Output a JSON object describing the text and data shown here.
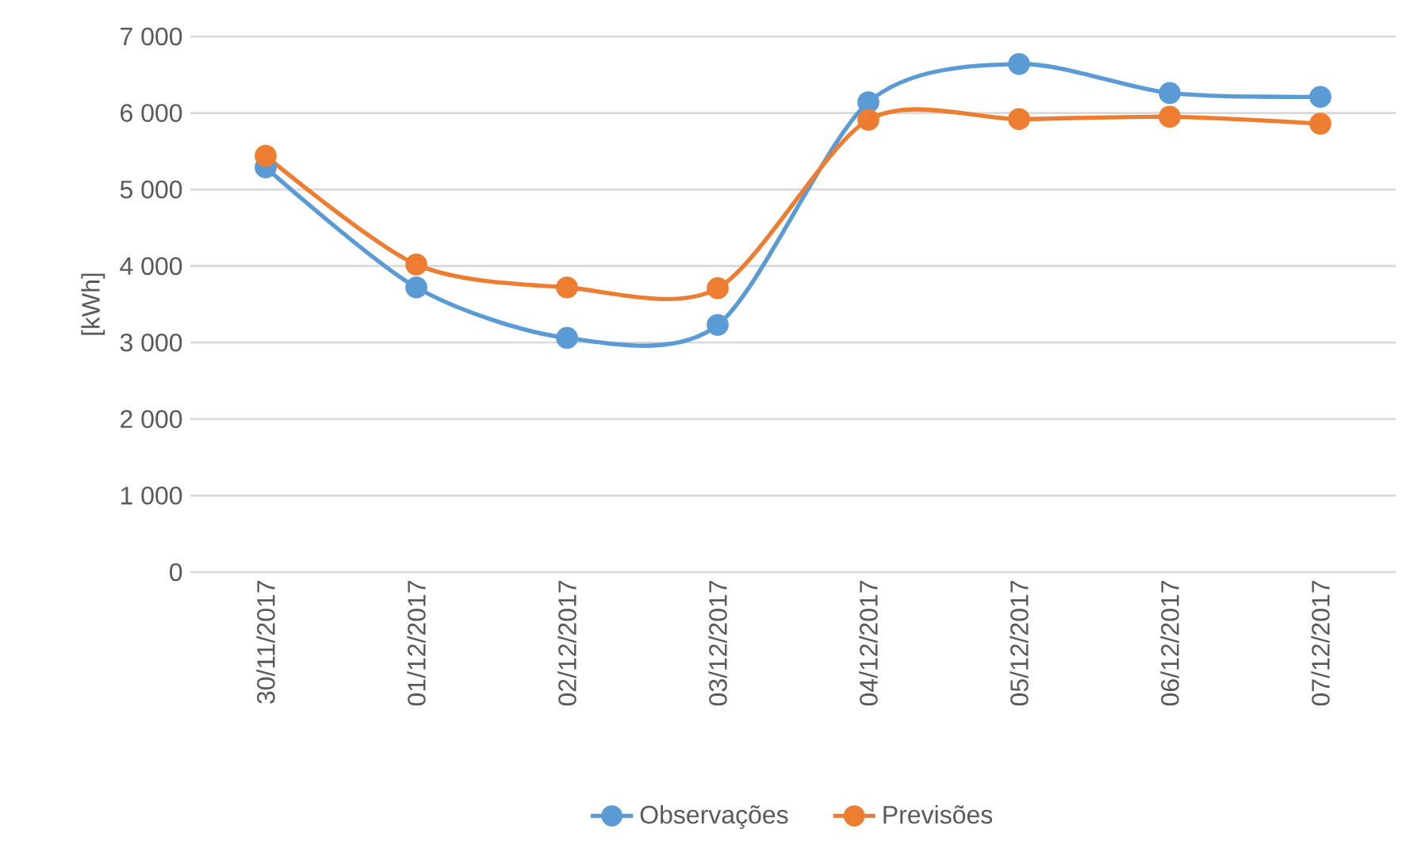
{
  "chart_data": {
    "type": "line",
    "ylabel": "[kWh]",
    "categories": [
      "30/11/2017",
      "01/12/2017",
      "02/12/2017",
      "03/12/2017",
      "04/12/2017",
      "05/12/2017",
      "06/12/2017",
      "07/12/2017"
    ],
    "series": [
      {
        "name": "Observações",
        "color": "#5b9bd5",
        "values": [
          5290,
          3720,
          3060,
          3230,
          6140,
          6640,
          6260,
          6210
        ]
      },
      {
        "name": "Previsões",
        "color": "#ed7d31",
        "values": [
          5440,
          4020,
          3720,
          3710,
          5910,
          5920,
          5950,
          5860
        ]
      }
    ],
    "ylim": [
      0,
      7000
    ],
    "yticks": [
      {
        "value": 0,
        "label": "0"
      },
      {
        "value": 1000,
        "label": "1 000"
      },
      {
        "value": 2000,
        "label": "2 000"
      },
      {
        "value": 3000,
        "label": "3 000"
      },
      {
        "value": 4000,
        "label": "4 000"
      },
      {
        "value": 5000,
        "label": "5 000"
      },
      {
        "value": 6000,
        "label": "6 000"
      },
      {
        "value": 7000,
        "label": "7 000"
      }
    ],
    "grid": "y",
    "legend": "bottom",
    "marker": "circle",
    "line_style": "solid"
  }
}
